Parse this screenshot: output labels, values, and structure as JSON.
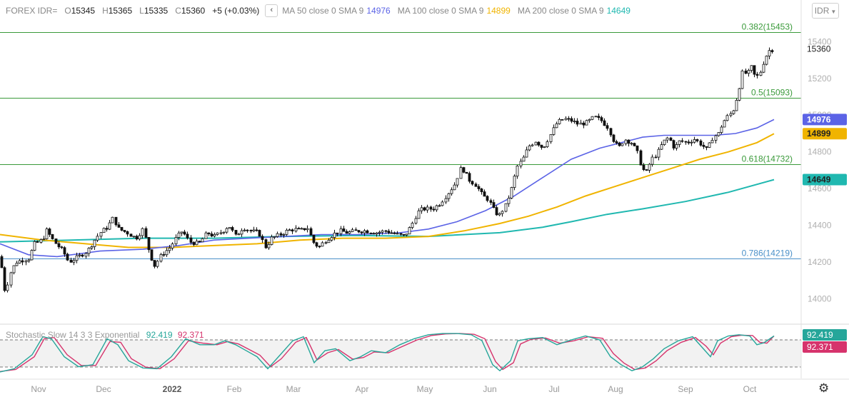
{
  "symbol": "FOREX IDR=",
  "ohlc": {
    "o_label": "O",
    "o": "15345",
    "h_label": "H",
    "h": "15365",
    "l_label": "L",
    "l": "15335",
    "c_label": "C",
    "c": "15360",
    "change": "+5 (+0.03%)"
  },
  "symbol_button": "IDR",
  "ma": [
    {
      "label": "MA 50 close 0 SMA 9",
      "value": "14976",
      "color": "#5b63e6"
    },
    {
      "label": "MA 100 close 0 SMA 9",
      "value": "14899",
      "color": "#f0b400"
    },
    {
      "label": "MA 200 close 0 SMA 9",
      "value": "14649",
      "color": "#20b8b0"
    }
  ],
  "stochastic": {
    "label": "Stochastic Slow 14 3 3 Exponential",
    "k": "92.419",
    "d": "92.371",
    "k_color": "#26a69a",
    "d_color": "#d6336c"
  },
  "colors": {
    "grid_green": "#3a9a3a",
    "blue_level": "#4a90c8",
    "price_bg": "#ffffff",
    "stoch_bg": "#f2f2f2"
  },
  "chart_data": {
    "type": "candlestick",
    "price_axis": {
      "ticks": [
        14000,
        14200,
        14400,
        14600,
        14800,
        15000,
        15200,
        15400
      ],
      "range": [
        13870,
        15510
      ]
    },
    "stoch_axis": {
      "range": [
        0,
        100
      ],
      "bands": [
        80,
        20
      ]
    },
    "x_labels": [
      "Nov",
      "Dec",
      "2022",
      "Feb",
      "Mar",
      "Apr",
      "May",
      "Jun",
      "Jul",
      "Aug",
      "Sep",
      "Oct"
    ],
    "last_price": "15360",
    "fib_levels": [
      {
        "label": "0.382(15453)",
        "price": 15453,
        "kind": "green"
      },
      {
        "label": "0.5(15093)",
        "price": 15093,
        "kind": "green"
      },
      {
        "label": "0.618(14732)",
        "price": 14732,
        "kind": "green"
      },
      {
        "label": "0.786(14219)",
        "price": 14219,
        "kind": "blue"
      }
    ],
    "price_path": [
      [
        0,
        14230
      ],
      [
        6,
        14050
      ],
      [
        10,
        14080
      ],
      [
        15,
        14150
      ],
      [
        22,
        14200
      ],
      [
        30,
        14210
      ],
      [
        40,
        14220
      ],
      [
        48,
        14300
      ],
      [
        55,
        14310
      ],
      [
        60,
        14330
      ],
      [
        66,
        14380
      ],
      [
        70,
        14340
      ],
      [
        78,
        14300
      ],
      [
        88,
        14260
      ],
      [
        96,
        14200
      ],
      [
        110,
        14230
      ],
      [
        122,
        14260
      ],
      [
        132,
        14320
      ],
      [
        140,
        14360
      ],
      [
        150,
        14390
      ],
      [
        158,
        14440
      ],
      [
        166,
        14380
      ],
      [
        178,
        14360
      ],
      [
        190,
        14330
      ],
      [
        200,
        14380
      ],
      [
        210,
        14240
      ],
      [
        216,
        14180
      ],
      [
        226,
        14240
      ],
      [
        238,
        14280
      ],
      [
        246,
        14330
      ],
      [
        255,
        14370
      ],
      [
        265,
        14310
      ],
      [
        278,
        14300
      ],
      [
        290,
        14360
      ],
      [
        300,
        14340
      ],
      [
        312,
        14370
      ],
      [
        320,
        14400
      ],
      [
        330,
        14340
      ],
      [
        340,
        14390
      ],
      [
        350,
        14370
      ],
      [
        362,
        14360
      ],
      [
        372,
        14280
      ],
      [
        380,
        14330
      ],
      [
        392,
        14350
      ],
      [
        402,
        14370
      ],
      [
        412,
        14380
      ],
      [
        420,
        14370
      ],
      [
        430,
        14390
      ],
      [
        438,
        14310
      ],
      [
        446,
        14280
      ],
      [
        456,
        14320
      ],
      [
        466,
        14350
      ],
      [
        476,
        14370
      ],
      [
        486,
        14360
      ],
      [
        500,
        14370
      ],
      [
        512,
        14370
      ],
      [
        526,
        14360
      ],
      [
        540,
        14370
      ],
      [
        556,
        14350
      ],
      [
        566,
        14340
      ],
      [
        576,
        14400
      ],
      [
        584,
        14470
      ],
      [
        592,
        14490
      ],
      [
        606,
        14490
      ],
      [
        616,
        14520
      ],
      [
        626,
        14570
      ],
      [
        636,
        14620
      ],
      [
        646,
        14720
      ],
      [
        656,
        14650
      ],
      [
        666,
        14620
      ],
      [
        676,
        14560
      ],
      [
        684,
        14540
      ],
      [
        690,
        14490
      ],
      [
        698,
        14450
      ],
      [
        708,
        14510
      ],
      [
        716,
        14600
      ],
      [
        724,
        14720
      ],
      [
        732,
        14760
      ],
      [
        740,
        14830
      ],
      [
        750,
        14860
      ],
      [
        760,
        14820
      ],
      [
        770,
        14890
      ],
      [
        780,
        14960
      ],
      [
        790,
        14980
      ],
      [
        800,
        14970
      ],
      [
        810,
        14950
      ],
      [
        822,
        14960
      ],
      [
        832,
        14990
      ],
      [
        842,
        14970
      ],
      [
        852,
        14930
      ],
      [
        858,
        14870
      ],
      [
        866,
        14820
      ],
      [
        874,
        14870
      ],
      [
        884,
        14850
      ],
      [
        892,
        14800
      ],
      [
        898,
        14720
      ],
      [
        904,
        14680
      ],
      [
        912,
        14760
      ],
      [
        920,
        14790
      ],
      [
        928,
        14850
      ],
      [
        936,
        14880
      ],
      [
        944,
        14820
      ],
      [
        952,
        14860
      ],
      [
        962,
        14850
      ],
      [
        972,
        14870
      ],
      [
        982,
        14840
      ],
      [
        990,
        14810
      ],
      [
        998,
        14880
      ],
      [
        1006,
        14900
      ],
      [
        1012,
        14960
      ],
      [
        1018,
        14990
      ],
      [
        1026,
        15020
      ],
      [
        1032,
        15100
      ],
      [
        1040,
        15240
      ],
      [
        1046,
        15220
      ],
      [
        1052,
        15260
      ],
      [
        1058,
        15200
      ],
      [
        1064,
        15230
      ],
      [
        1070,
        15300
      ],
      [
        1076,
        15350
      ],
      [
        1084,
        15360
      ]
    ],
    "ma50_path": [
      [
        0,
        14300
      ],
      [
        40,
        14240
      ],
      [
        80,
        14230
      ],
      [
        140,
        14260
      ],
      [
        200,
        14270
      ],
      [
        250,
        14290
      ],
      [
        300,
        14320
      ],
      [
        350,
        14330
      ],
      [
        400,
        14340
      ],
      [
        450,
        14350
      ],
      [
        500,
        14350
      ],
      [
        560,
        14360
      ],
      [
        600,
        14380
      ],
      [
        640,
        14420
      ],
      [
        680,
        14480
      ],
      [
        720,
        14560
      ],
      [
        760,
        14660
      ],
      [
        800,
        14760
      ],
      [
        840,
        14820
      ],
      [
        870,
        14850
      ],
      [
        900,
        14880
      ],
      [
        930,
        14890
      ],
      [
        960,
        14890
      ],
      [
        1000,
        14890
      ],
      [
        1030,
        14900
      ],
      [
        1060,
        14930
      ],
      [
        1084,
        14976
      ]
    ],
    "ma100_path": [
      [
        0,
        14350
      ],
      [
        60,
        14320
      ],
      [
        120,
        14300
      ],
      [
        180,
        14280
      ],
      [
        240,
        14280
      ],
      [
        300,
        14290
      ],
      [
        360,
        14300
      ],
      [
        420,
        14320
      ],
      [
        480,
        14330
      ],
      [
        540,
        14330
      ],
      [
        600,
        14340
      ],
      [
        650,
        14370
      ],
      [
        700,
        14410
      ],
      [
        740,
        14450
      ],
      [
        780,
        14500
      ],
      [
        820,
        14560
      ],
      [
        860,
        14610
      ],
      [
        900,
        14660
      ],
      [
        940,
        14710
      ],
      [
        980,
        14760
      ],
      [
        1020,
        14800
      ],
      [
        1060,
        14850
      ],
      [
        1084,
        14899
      ]
    ],
    "ma200_path": [
      [
        0,
        14310
      ],
      [
        100,
        14320
      ],
      [
        200,
        14330
      ],
      [
        300,
        14330
      ],
      [
        400,
        14340
      ],
      [
        500,
        14345
      ],
      [
        600,
        14340
      ],
      [
        700,
        14360
      ],
      [
        760,
        14390
      ],
      [
        800,
        14420
      ],
      [
        850,
        14460
      ],
      [
        900,
        14490
      ],
      [
        960,
        14530
      ],
      [
        1020,
        14580
      ],
      [
        1084,
        14649
      ]
    ],
    "stoch_k_path": [
      [
        0,
        2
      ],
      [
        20,
        10
      ],
      [
        45,
        45
      ],
      [
        60,
        90
      ],
      [
        72,
        85
      ],
      [
        90,
        40
      ],
      [
        110,
        15
      ],
      [
        130,
        20
      ],
      [
        150,
        85
      ],
      [
        165,
        70
      ],
      [
        180,
        30
      ],
      [
        200,
        12
      ],
      [
        220,
        10
      ],
      [
        240,
        40
      ],
      [
        260,
        85
      ],
      [
        280,
        70
      ],
      [
        300,
        70
      ],
      [
        315,
        80
      ],
      [
        330,
        70
      ],
      [
        345,
        55
      ],
      [
        360,
        40
      ],
      [
        375,
        10
      ],
      [
        390,
        40
      ],
      [
        410,
        80
      ],
      [
        425,
        90
      ],
      [
        440,
        25
      ],
      [
        455,
        55
      ],
      [
        470,
        60
      ],
      [
        490,
        30
      ],
      [
        505,
        40
      ],
      [
        520,
        55
      ],
      [
        540,
        50
      ],
      [
        560,
        70
      ],
      [
        580,
        85
      ],
      [
        600,
        95
      ],
      [
        620,
        98
      ],
      [
        640,
        98
      ],
      [
        660,
        95
      ],
      [
        675,
        80
      ],
      [
        690,
        20
      ],
      [
        700,
        5
      ],
      [
        715,
        30
      ],
      [
        725,
        80
      ],
      [
        740,
        85
      ],
      [
        760,
        88
      ],
      [
        780,
        70
      ],
      [
        800,
        82
      ],
      [
        820,
        92
      ],
      [
        840,
        82
      ],
      [
        855,
        40
      ],
      [
        870,
        20
      ],
      [
        885,
        5
      ],
      [
        900,
        15
      ],
      [
        915,
        35
      ],
      [
        930,
        60
      ],
      [
        950,
        80
      ],
      [
        970,
        90
      ],
      [
        985,
        60
      ],
      [
        995,
        40
      ],
      [
        1005,
        80
      ],
      [
        1020,
        92
      ],
      [
        1035,
        95
      ],
      [
        1050,
        92
      ],
      [
        1060,
        70
      ],
      [
        1070,
        75
      ],
      [
        1084,
        92
      ]
    ],
    "stoch_d_path": [
      [
        0,
        3
      ],
      [
        22,
        8
      ],
      [
        48,
        40
      ],
      [
        62,
        85
      ],
      [
        76,
        88
      ],
      [
        94,
        45
      ],
      [
        114,
        18
      ],
      [
        134,
        18
      ],
      [
        154,
        78
      ],
      [
        169,
        76
      ],
      [
        184,
        35
      ],
      [
        204,
        14
      ],
      [
        224,
        10
      ],
      [
        244,
        35
      ],
      [
        264,
        80
      ],
      [
        284,
        74
      ],
      [
        304,
        70
      ],
      [
        319,
        78
      ],
      [
        334,
        72
      ],
      [
        349,
        58
      ],
      [
        364,
        44
      ],
      [
        379,
        15
      ],
      [
        394,
        35
      ],
      [
        414,
        76
      ],
      [
        429,
        88
      ],
      [
        444,
        32
      ],
      [
        459,
        50
      ],
      [
        474,
        58
      ],
      [
        494,
        34
      ],
      [
        509,
        38
      ],
      [
        524,
        52
      ],
      [
        544,
        50
      ],
      [
        564,
        66
      ],
      [
        584,
        82
      ],
      [
        604,
        93
      ],
      [
        624,
        97
      ],
      [
        644,
        98
      ],
      [
        664,
        96
      ],
      [
        679,
        85
      ],
      [
        694,
        28
      ],
      [
        704,
        8
      ],
      [
        719,
        25
      ],
      [
        729,
        72
      ],
      [
        744,
        84
      ],
      [
        764,
        87
      ],
      [
        784,
        74
      ],
      [
        804,
        80
      ],
      [
        824,
        90
      ],
      [
        844,
        86
      ],
      [
        859,
        48
      ],
      [
        874,
        24
      ],
      [
        889,
        8
      ],
      [
        904,
        12
      ],
      [
        919,
        30
      ],
      [
        934,
        55
      ],
      [
        954,
        76
      ],
      [
        974,
        88
      ],
      [
        989,
        66
      ],
      [
        999,
        45
      ],
      [
        1009,
        74
      ],
      [
        1024,
        90
      ],
      [
        1039,
        94
      ],
      [
        1054,
        93
      ],
      [
        1064,
        76
      ],
      [
        1074,
        74
      ],
      [
        1084,
        92
      ]
    ]
  }
}
